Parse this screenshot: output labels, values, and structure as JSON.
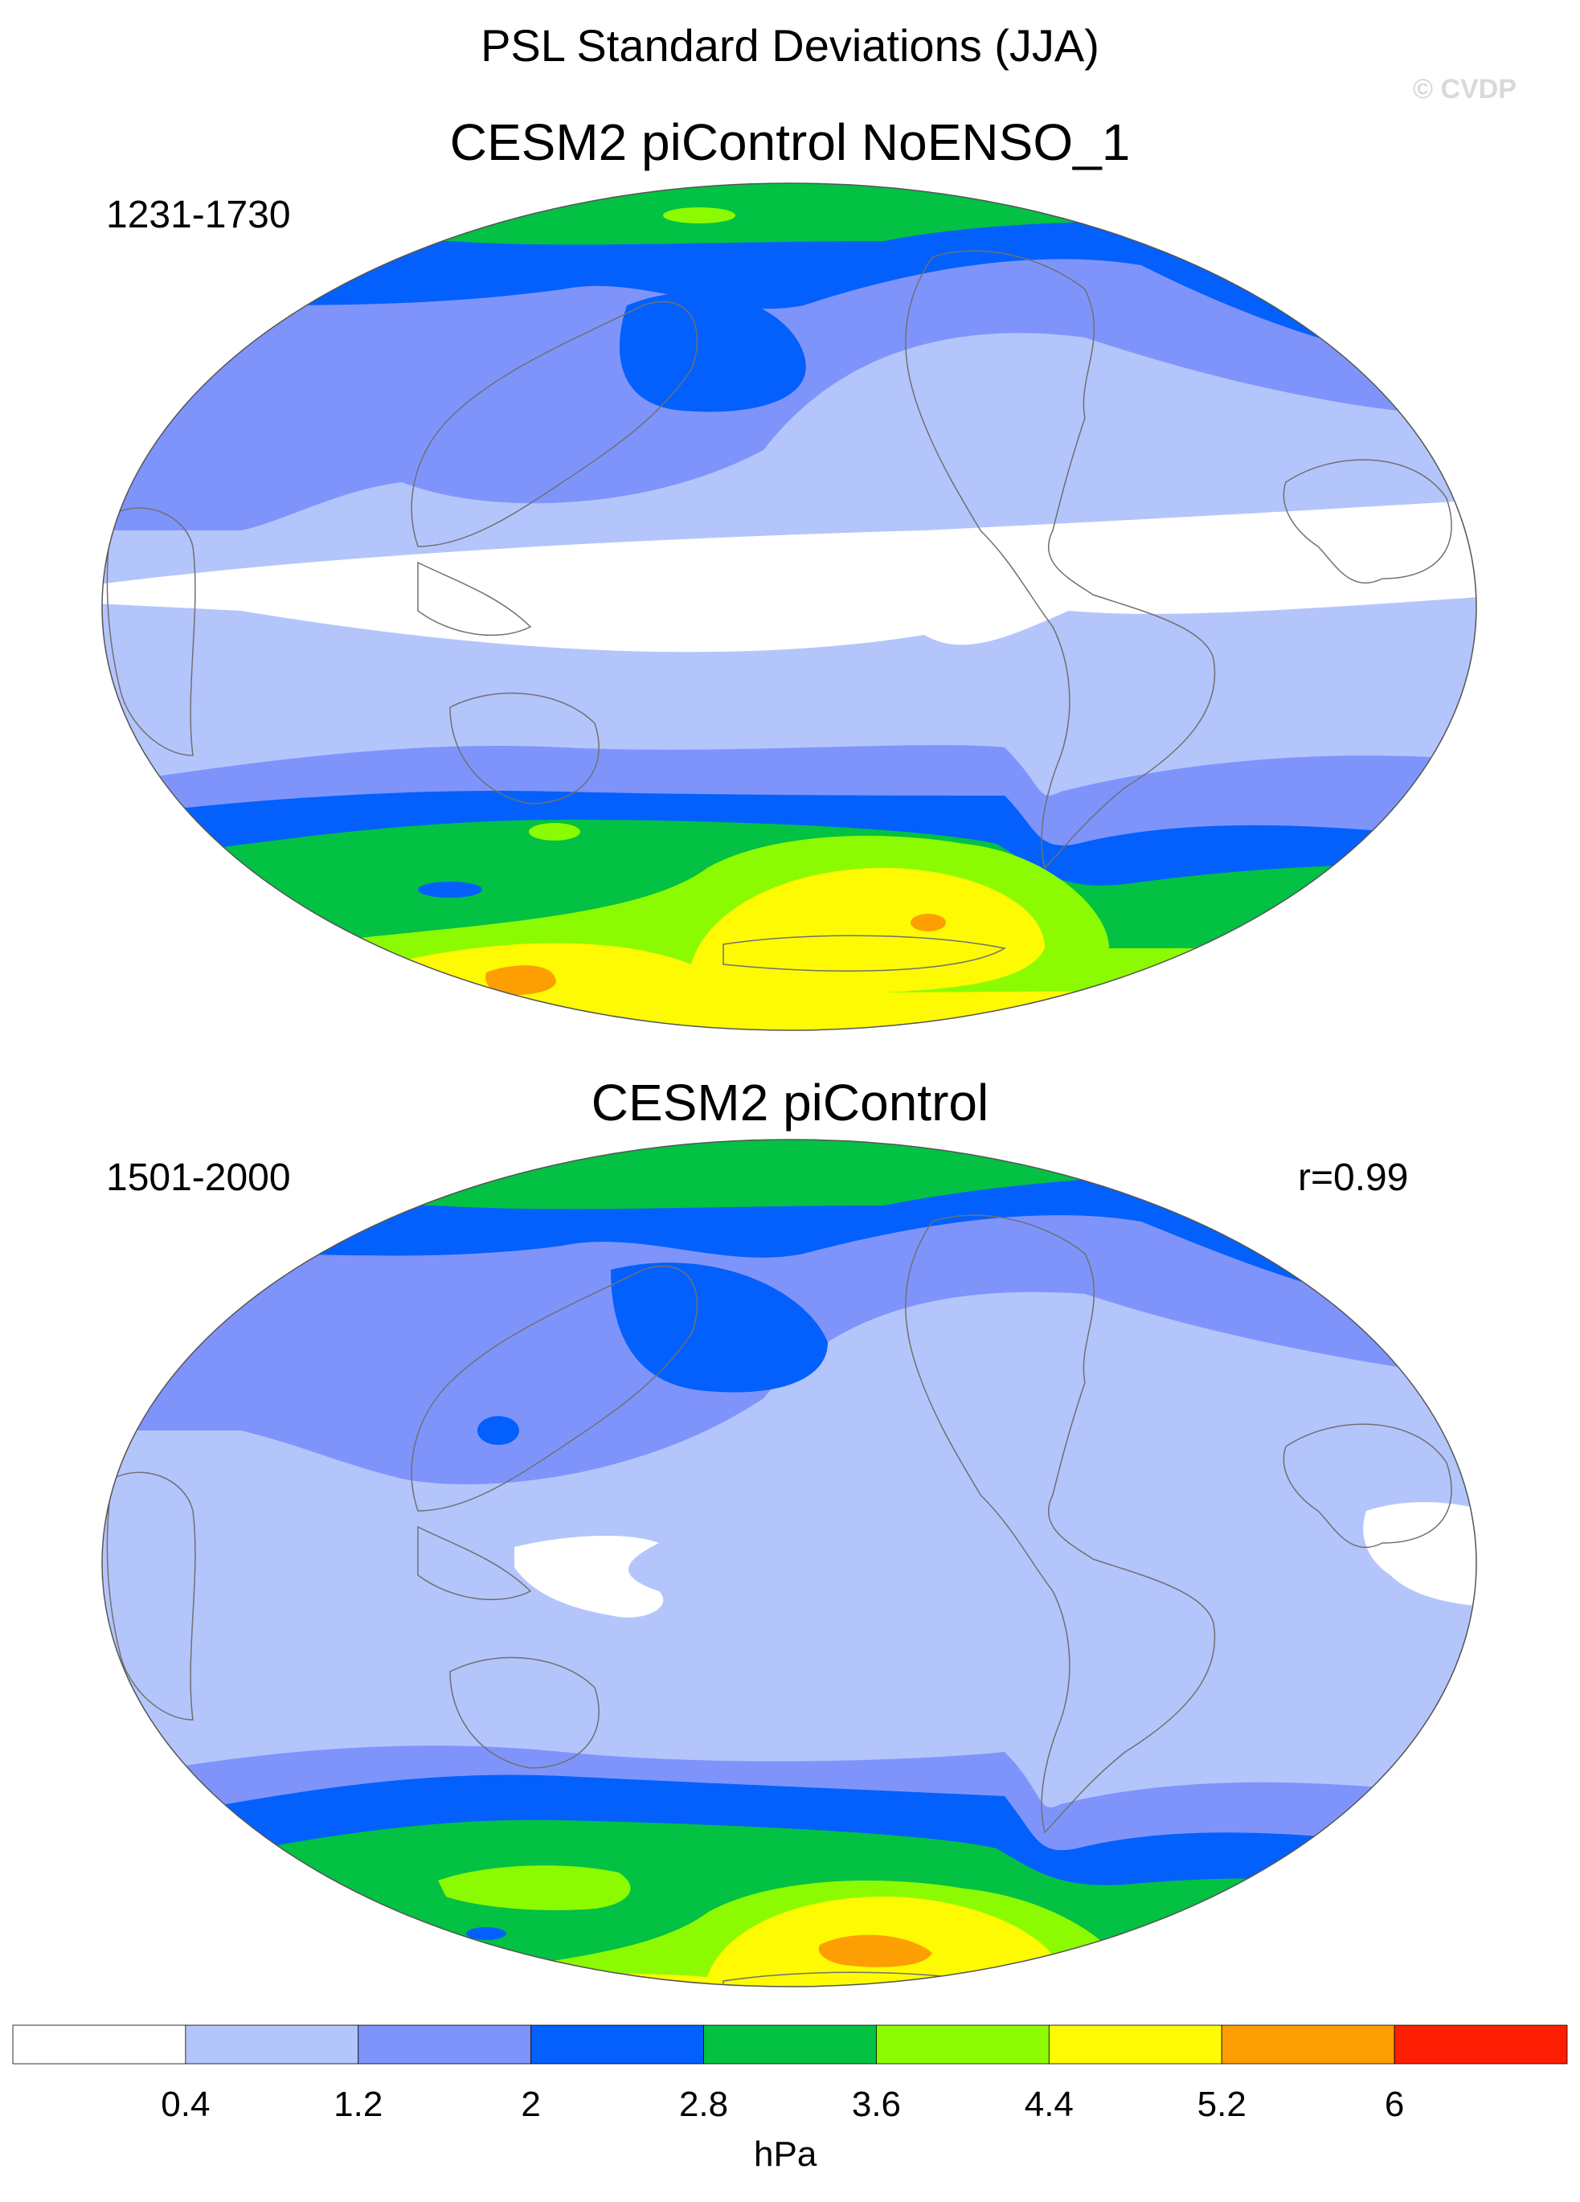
{
  "header": {
    "title": "PSL Standard Deviations (JJA)",
    "watermark": "© CVDP"
  },
  "panels": [
    {
      "title": "CESM2 piControl NoENSO_1",
      "years": "1231-1730",
      "stat": ""
    },
    {
      "title": "CESM2 piControl",
      "years": "1501-2000",
      "stat": "r=0.99"
    }
  ],
  "colorbar": {
    "units": "hPa",
    "ticks": [
      "0.4",
      "1.2",
      "2",
      "2.8",
      "3.6",
      "4.4",
      "5.2",
      "6"
    ],
    "colors": [
      "#ffffff",
      "#b4c5fb",
      "#7f94fb",
      "#0360fc",
      "#03c143",
      "#8cfb02",
      "#fdfa03",
      "#fd9e02",
      "#fd1e03"
    ]
  }
}
